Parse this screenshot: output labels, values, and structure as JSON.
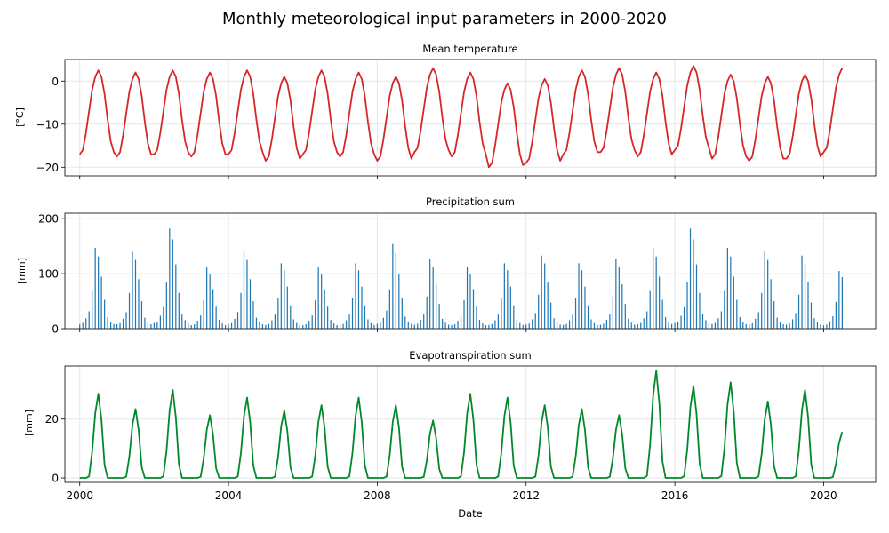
{
  "figure": {
    "title": "Monthly meteorological input parameters in 2000-2020",
    "xlabel": "Date"
  },
  "chart_data": [
    {
      "type": "line",
      "title": "Mean temperature",
      "ylabel": "[°C]",
      "color": "#d62728",
      "xlim": [
        1999.6,
        2021.4
      ],
      "ylim": [
        -22,
        5
      ],
      "grid": true,
      "x_ticks": [
        2000,
        2004,
        2008,
        2012,
        2016,
        2020
      ],
      "x_tick_labels": [],
      "y_ticks": [
        0,
        -10,
        -20
      ],
      "y_tick_labels": [
        "0",
        "−10",
        "−20"
      ],
      "annual_cycle": [
        -17,
        -16,
        -12,
        -7,
        -2,
        1,
        2.5,
        1,
        -3,
        -9,
        -14,
        -16.5
      ],
      "year_offsets": [
        0,
        -0.5,
        0,
        -0.5,
        0,
        -1.5,
        0,
        -0.5,
        -1.5,
        0.5,
        -0.5,
        -3,
        -2,
        0,
        0.5,
        -0.5,
        1,
        -1,
        -1.5,
        -1,
        0.5
      ]
    },
    {
      "type": "bar",
      "title": "Precipitation sum",
      "ylabel": "[mm]",
      "color": "#1f77b4",
      "xlim": [
        1999.6,
        2021.4
      ],
      "ylim": [
        0,
        210
      ],
      "grid": true,
      "x_ticks": [
        2000,
        2004,
        2008,
        2012,
        2016,
        2020
      ],
      "x_tick_labels": [],
      "y_ticks": [
        0,
        100,
        200
      ],
      "y_tick_labels": [
        "0",
        "100",
        "200"
      ],
      "annual_cycle": [
        8,
        10,
        18,
        30,
        65,
        140,
        125,
        90,
        50,
        20,
        12,
        8
      ],
      "year_scales": [
        1.05,
        1.0,
        1.3,
        0.8,
        1.0,
        0.85,
        0.8,
        0.85,
        1.1,
        0.9,
        0.8,
        0.85,
        0.95,
        0.85,
        0.9,
        1.05,
        1.3,
        1.05,
        1.0,
        0.95,
        0.75
      ]
    },
    {
      "type": "line",
      "title": "Evapotranspiration sum",
      "ylabel": "[mm]",
      "color": "#00882b",
      "xlim": [
        1999.6,
        2021.4
      ],
      "ylim": [
        -1.5,
        38
      ],
      "grid": true,
      "x_ticks": [
        2000,
        2004,
        2008,
        2012,
        2016,
        2020
      ],
      "x_tick_labels": [
        "2000",
        "2004",
        "2008",
        "2012",
        "2016",
        "2020"
      ],
      "y_ticks": [
        0,
        20
      ],
      "y_tick_labels": [
        "0",
        "20"
      ],
      "annual_cycle": [
        0,
        0,
        0,
        0.5,
        8,
        20,
        26,
        18,
        4,
        0,
        0,
        0
      ],
      "year_scales": [
        1.1,
        0.9,
        1.15,
        0.82,
        1.05,
        0.88,
        0.95,
        1.05,
        0.95,
        0.75,
        1.1,
        1.05,
        0.95,
        0.9,
        0.82,
        1.4,
        1.2,
        1.25,
        1.0,
        1.15,
        0.6
      ]
    }
  ]
}
